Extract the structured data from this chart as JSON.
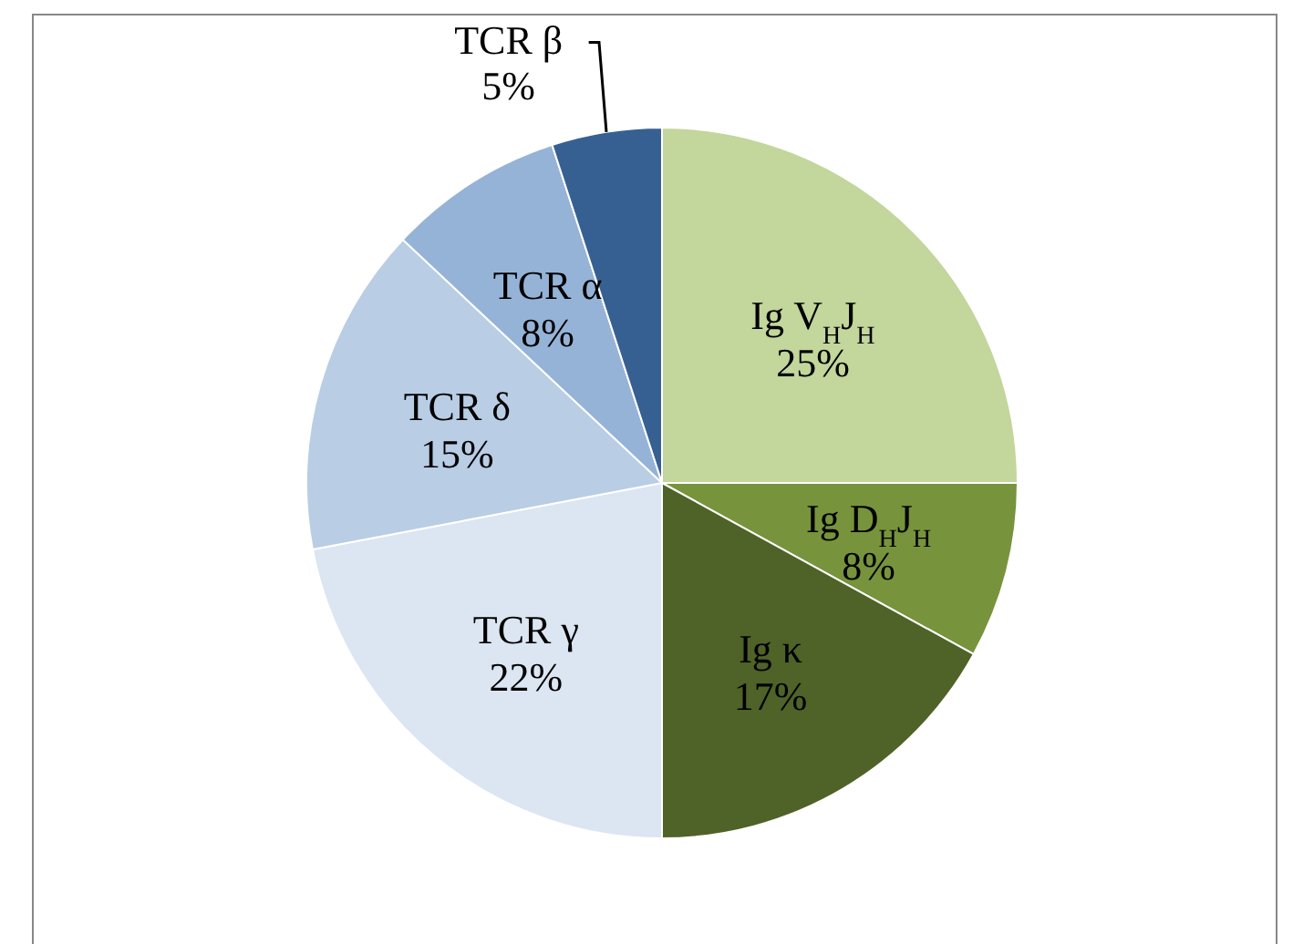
{
  "chart_data": {
    "type": "pie",
    "categories": [
      "Ig V$_{H}$J$_{H}$",
      "Ig D$_{H}$J$_{H}$",
      "Ig κ",
      "TCR γ",
      "TCR δ",
      "TCR α",
      "TCR β"
    ],
    "values": [
      25,
      8,
      17,
      22,
      15,
      8,
      5
    ],
    "value_labels": [
      "25%",
      "8%",
      "17%",
      "22%",
      "15%",
      "8%",
      "5%"
    ],
    "colors": [
      "#c3d69b",
      "#77933c",
      "#4f6228",
      "#dce6f2",
      "#b9cde5",
      "#95b3d7",
      "#376092"
    ]
  }
}
